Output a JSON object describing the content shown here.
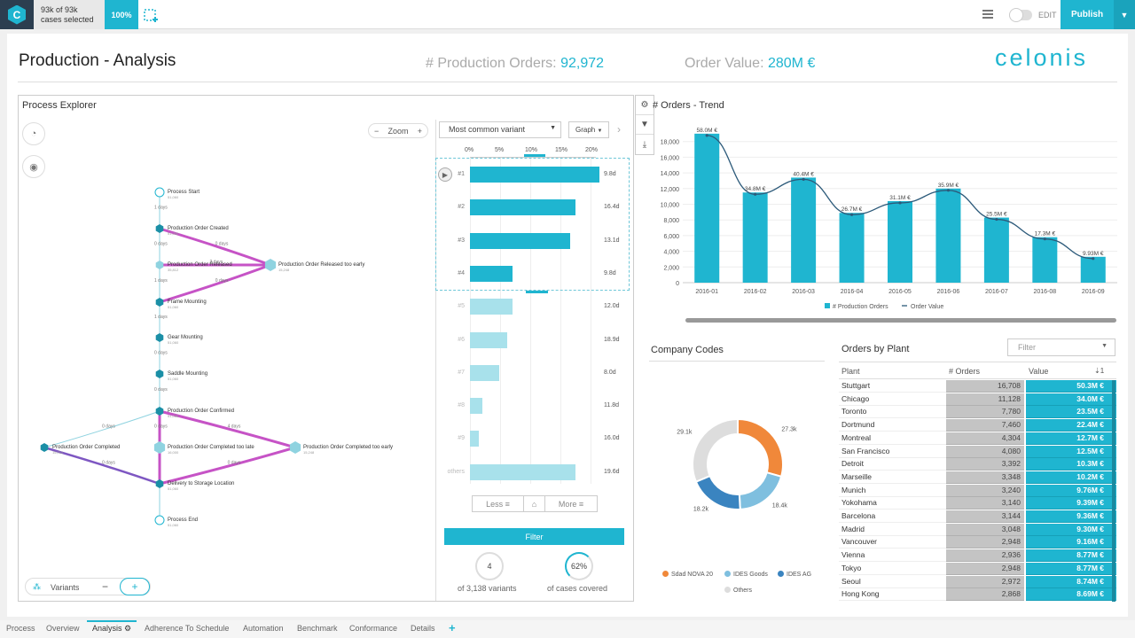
{
  "topbar": {
    "logo_letter": "C",
    "cases_line1": "93k of 93k",
    "cases_line2": "cases selected",
    "percent": "100%",
    "edit_label": "EDIT",
    "publish_label": "Publish"
  },
  "page": {
    "title": "Production - Analysis",
    "kpi_orders_label": "# Production Orders:",
    "kpi_orders_value": "92,972",
    "kpi_value_label": "Order Value:",
    "kpi_value_value": "280M €",
    "brand": "celonis"
  },
  "process_explorer": {
    "title": "Process Explorer",
    "zoom_label": "Zoom",
    "variant_select": "Most common variant",
    "graph_select": "Graph",
    "axis_ticks": [
      "0%",
      "5%",
      "10%",
      "15%",
      "20%"
    ],
    "variants": [
      {
        "label": "#1",
        "value": "9.8d",
        "pct": 21.5,
        "selected": true
      },
      {
        "label": "#2",
        "value": "16.4d",
        "pct": 17.5,
        "selected": true
      },
      {
        "label": "#3",
        "value": "13.1d",
        "pct": 16.6,
        "selected": true
      },
      {
        "label": "#4",
        "value": "9.8d",
        "pct": 7.0,
        "selected": true
      },
      {
        "label": "#5",
        "value": "12.0d",
        "pct": 7.0,
        "selected": false
      },
      {
        "label": "#6",
        "value": "18.9d",
        "pct": 6.2,
        "selected": false
      },
      {
        "label": "#7",
        "value": "8.0d",
        "pct": 4.8,
        "selected": false
      },
      {
        "label": "#8",
        "value": "11.8d",
        "pct": 2.0,
        "selected": false
      },
      {
        "label": "#9",
        "value": "16.0d",
        "pct": 1.5,
        "selected": false
      },
      {
        "label": "others",
        "value": "19.6d",
        "pct": 17.5,
        "selected": false
      }
    ],
    "less_label": "Less",
    "more_label": "More",
    "filter_label": "Filter",
    "stat1_value": "4",
    "stat1_label": "of 3,138 variants",
    "stat2_value": "62%",
    "stat2_label": "of cases covered",
    "variants_ctrl_label": "Variants",
    "nodes": [
      {
        "name": "Process Start",
        "count": "51,060"
      },
      {
        "name": "Production Order Created",
        "count": "51,060"
      },
      {
        "name": "Production Order Released",
        "count": "35,812"
      },
      {
        "name": "Production Order Released too early",
        "count": "15,248"
      },
      {
        "name": "Frame Mounting",
        "count": "51,060"
      },
      {
        "name": "Gear Mounting",
        "count": "51,060"
      },
      {
        "name": "Saddle Mounting",
        "count": "51,060"
      },
      {
        "name": "Production Order Confirmed",
        "count": "51,060"
      },
      {
        "name": "Production Order Completed",
        "count": "15,012"
      },
      {
        "name": "Production Order Completed too late",
        "count": "16,000"
      },
      {
        "name": "Production Order Completed too early",
        "count": "15,248"
      },
      {
        "name": "Delivery to Storage Location",
        "count": "51,060"
      },
      {
        "name": "Process End",
        "count": "51,060"
      }
    ],
    "edge_labels": [
      "1 days",
      "0 days",
      "0 days",
      "2 days",
      "0 days",
      "1 days",
      "1 days",
      "0 days",
      "0 days",
      "0 days",
      "0 days",
      "4 days",
      "0 days",
      "0 days"
    ]
  },
  "trend": {
    "title": "# Orders - Trend",
    "chart_data": {
      "type": "bar",
      "categories": [
        "2016-01",
        "2016-02",
        "2016-03",
        "2016-04",
        "2016-05",
        "2016-06",
        "2016-07",
        "2016-08",
        "2016-09"
      ],
      "series": [
        {
          "name": "# Production Orders",
          "values": [
            19000,
            11500,
            13400,
            8900,
            10400,
            12000,
            8300,
            5800,
            3300
          ]
        },
        {
          "name": "Order Value",
          "labels": [
            "58.0M €",
            "34.8M €",
            "40.4M €",
            "26.7M €",
            "31.1M €",
            "35.9M €",
            "25.5M €",
            "17.3M €",
            "9.93M €"
          ]
        }
      ],
      "y_ticks": [
        "0",
        "2,000",
        "4,000",
        "6,000",
        "8,000",
        "10,000",
        "12,000",
        "14,000",
        "16,000",
        "18,000"
      ],
      "ylim": [
        0,
        20000
      ],
      "legend": "bottom"
    }
  },
  "company_codes": {
    "title": "Company Codes",
    "chart_data": {
      "type": "pie",
      "slices": [
        {
          "name": "Sdad NOVA 20",
          "value": 27.3,
          "label": "27.3k",
          "color": "#f0883a"
        },
        {
          "name": "IDES Goods",
          "value": 18.4,
          "label": "18.4k",
          "color": "#7fbfdf"
        },
        {
          "name": "IDES AG",
          "value": 18.2,
          "label": "18.2k",
          "color": "#3a84c0"
        },
        {
          "name": "Others",
          "value": 29.1,
          "label": "29.1k",
          "color": "#dddddd"
        }
      ],
      "legend": "bottom"
    }
  },
  "orders_by_plant": {
    "title": "Orders by Plant",
    "filter_placeholder": "Filter",
    "col_plant": "Plant",
    "col_orders": "# Orders",
    "col_value": "Value",
    "rows": [
      {
        "plant": "Stuttgart",
        "orders": "16,708",
        "value": "50.3M €"
      },
      {
        "plant": "Chicago",
        "orders": "11,128",
        "value": "34.0M €"
      },
      {
        "plant": "Toronto",
        "orders": "7,780",
        "value": "23.5M €"
      },
      {
        "plant": "Dortmund",
        "orders": "7,460",
        "value": "22.4M €"
      },
      {
        "plant": "Montreal",
        "orders": "4,304",
        "value": "12.7M €"
      },
      {
        "plant": "San Francisco",
        "orders": "4,080",
        "value": "12.5M €"
      },
      {
        "plant": "Detroit",
        "orders": "3,392",
        "value": "10.3M €"
      },
      {
        "plant": "Marseille",
        "orders": "3,348",
        "value": "10.2M €"
      },
      {
        "plant": "Munich",
        "orders": "3,240",
        "value": "9.76M €"
      },
      {
        "plant": "Yokohama",
        "orders": "3,140",
        "value": "9.39M €"
      },
      {
        "plant": "Barcelona",
        "orders": "3,144",
        "value": "9.36M €"
      },
      {
        "plant": "Madrid",
        "orders": "3,048",
        "value": "9.30M €"
      },
      {
        "plant": "Vancouver",
        "orders": "2,948",
        "value": "9.16M €"
      },
      {
        "plant": "Vienna",
        "orders": "2,936",
        "value": "8.77M €"
      },
      {
        "plant": "Tokyo",
        "orders": "2,948",
        "value": "8.77M €"
      },
      {
        "plant": "Seoul",
        "orders": "2,972",
        "value": "8.74M €"
      },
      {
        "plant": "Hong Kong",
        "orders": "2,868",
        "value": "8.69M €"
      }
    ]
  },
  "tabs": [
    {
      "label": "Process"
    },
    {
      "label": "Overview"
    },
    {
      "label": "Analysis",
      "active": true
    },
    {
      "label": "Adherence To Schedule"
    },
    {
      "label": "Automation"
    },
    {
      "label": "Benchmark"
    },
    {
      "label": "Conformance"
    },
    {
      "label": "Details"
    }
  ],
  "colors": {
    "accent": "#1fb5d0",
    "magenta": "#c653c6",
    "purple": "#7e57c2"
  }
}
